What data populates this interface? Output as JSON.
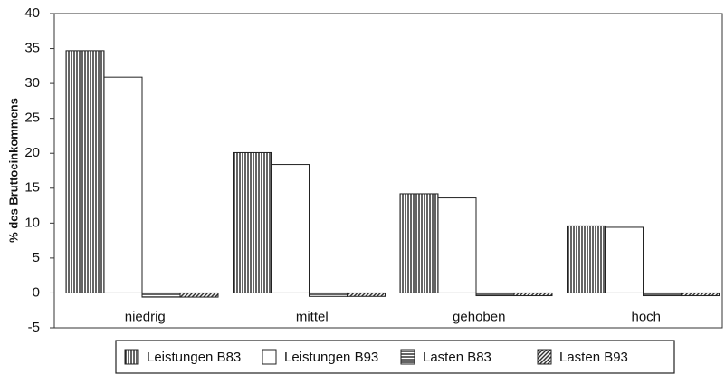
{
  "chart_data": {
    "type": "bar",
    "y_label": "% des Bruttoeinkommens",
    "categories": [
      "niedrig",
      "mittel",
      "gehoben",
      "hoch"
    ],
    "series": [
      {
        "name": "Leistungen B83",
        "color": "#222",
        "pattern": "vertical",
        "values": [
          34.7,
          20.1,
          14.2,
          9.6
        ]
      },
      {
        "name": "Leistungen B93",
        "color": "#222",
        "pattern": "none",
        "values": [
          30.9,
          18.4,
          13.6,
          9.4
        ]
      },
      {
        "name": "Lasten B83",
        "color": "#222",
        "pattern": "horizontal",
        "values": [
          -0.6,
          -0.5,
          -0.4,
          -0.4
        ]
      },
      {
        "name": "Lasten B93",
        "color": "#222",
        "pattern": "diagonal",
        "values": [
          -0.6,
          -0.5,
          -0.4,
          -0.4
        ]
      }
    ],
    "ylim": [
      -5,
      40
    ],
    "yticks": [
      -5,
      0,
      5,
      10,
      15,
      20,
      25,
      30,
      35,
      40
    ],
    "grid": false
  }
}
